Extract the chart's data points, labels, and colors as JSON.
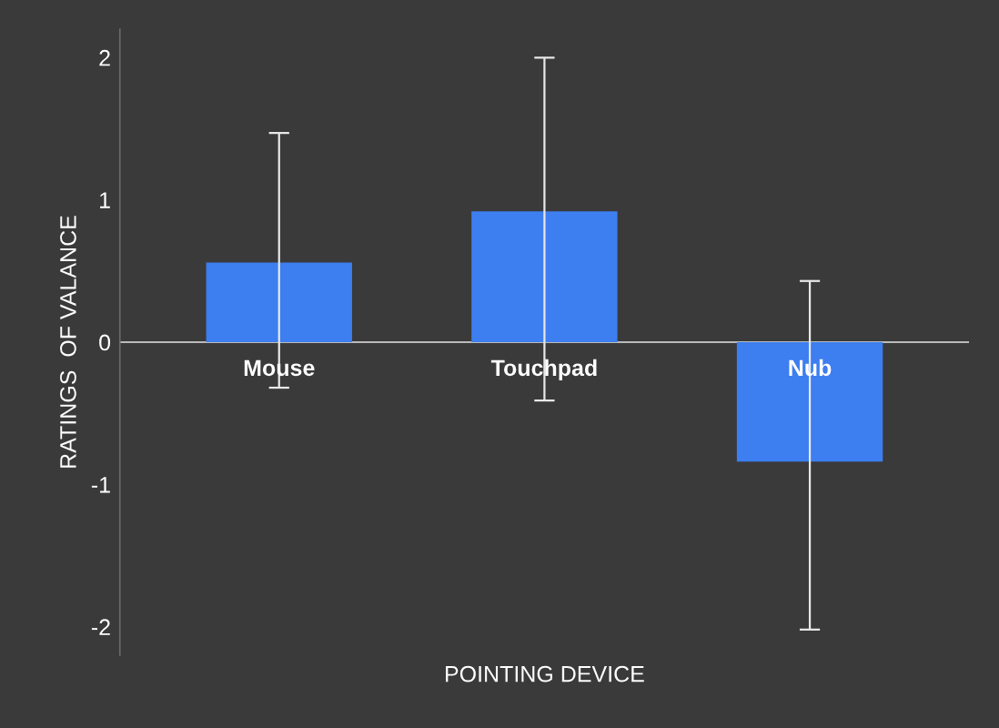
{
  "chart_data": {
    "type": "bar",
    "xlabel": "POINTING DEVICE",
    "ylabel": "RATINGS  OF VALANCE",
    "categories": [
      "Mouse",
      "Touchpad",
      "Nub"
    ],
    "values": [
      0.56,
      0.92,
      -0.84
    ],
    "errors": [
      [
        -0.32,
        1.47
      ],
      [
        -0.41,
        2.0
      ],
      [
        -2.02,
        0.43
      ]
    ],
    "color": "#3d7ef0",
    "ylim": [
      -2.2,
      2.2
    ],
    "yticks": [
      -2,
      -1,
      0,
      1,
      2
    ],
    "grid": false
  }
}
